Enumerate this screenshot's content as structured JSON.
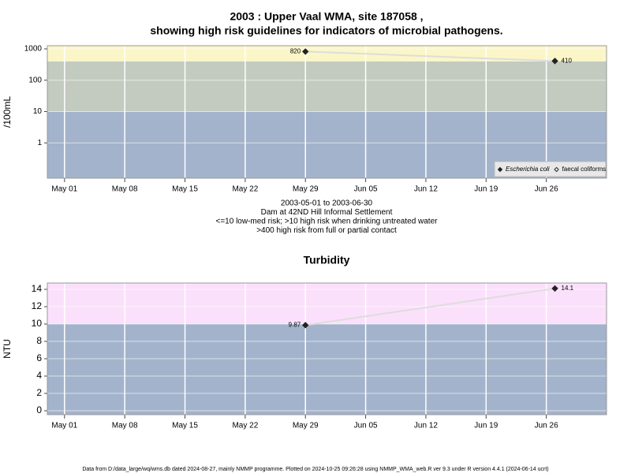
{
  "chart_data": [
    {
      "type": "line",
      "title": [
        "2003 : Upper Vaal WMA, site 187058 ,",
        "showing high risk guidelines for indicators of microbial pathogens."
      ],
      "notes": [
        "2003-05-01 to 2003-06-30",
        "Dam at 42ND Hill Informal Settlement",
        "<=10 low-med risk; >10 high risk when drinking untreated water",
        ">400 high risk from full or partial contact"
      ],
      "y_label": "/100mL",
      "x": [
        "2003-05-29",
        "2003-06-27"
      ],
      "xlim": [
        "2003-04-29",
        "2003-07-03"
      ],
      "xticks": [
        {
          "value": "2003-05-01",
          "label": "May 01"
        },
        {
          "value": "2003-05-08",
          "label": "May 08"
        },
        {
          "value": "2003-05-15",
          "label": "May 15"
        },
        {
          "value": "2003-05-22",
          "label": "May 22"
        },
        {
          "value": "2003-05-29",
          "label": "May 29"
        },
        {
          "value": "2003-06-05",
          "label": "Jun 05"
        },
        {
          "value": "2003-06-12",
          "label": "Jun 12"
        },
        {
          "value": "2003-06-19",
          "label": "Jun 19"
        },
        {
          "value": "2003-06-26",
          "label": "Jun 26"
        }
      ],
      "log_scale": true,
      "ylim": [
        0.075,
        1260
      ],
      "yticks": [
        1,
        10,
        100,
        1000
      ],
      "thresholds": [
        10,
        400
      ],
      "band_colors": [
        "#a3b3cb",
        "#c3cbc0",
        "#fbf6c8"
      ],
      "line_color": "#dddddd",
      "grid": true,
      "legend_position": "lower right",
      "series": [
        {
          "name": "Escherichia coli",
          "color": "#222222",
          "marker": "filled",
          "values": [
            820,
            410
          ]
        },
        {
          "name": "faecal coliforms",
          "color": "#222222",
          "marker": "open",
          "values": [
            null,
            null
          ]
        }
      ]
    },
    {
      "type": "line",
      "title": [
        "Turbidity"
      ],
      "y_label": "NTU",
      "x": [
        "2003-05-29",
        "2003-06-27"
      ],
      "xlim": [
        "2003-04-29",
        "2003-07-03"
      ],
      "xticks": [
        {
          "value": "2003-05-01",
          "label": "May 01"
        },
        {
          "value": "2003-05-08",
          "label": "May 08"
        },
        {
          "value": "2003-05-15",
          "label": "May 15"
        },
        {
          "value": "2003-05-22",
          "label": "May 22"
        },
        {
          "value": "2003-05-29",
          "label": "May 29"
        },
        {
          "value": "2003-06-05",
          "label": "Jun 05"
        },
        {
          "value": "2003-06-12",
          "label": "Jun 12"
        },
        {
          "value": "2003-06-19",
          "label": "Jun 19"
        },
        {
          "value": "2003-06-26",
          "label": "Jun 26"
        }
      ],
      "log_scale": false,
      "ylim": [
        -0.45,
        14.73
      ],
      "yticks": [
        0,
        2,
        4,
        6,
        8,
        10,
        12,
        14
      ],
      "thresholds": [
        10
      ],
      "band_colors": [
        "#a3b3cb",
        "#fbe0fb"
      ],
      "line_color": "#dddddd",
      "grid": true,
      "series": [
        {
          "name": "Turbidity",
          "color": "#222222",
          "marker": "filled",
          "values": [
            9.87,
            14.1
          ]
        }
      ]
    }
  ],
  "footer": "Data from D:/data_large/wq/wms.db dated 2024-08-27, mainly NMMP programme. Plotted on 2024-10-25 09:26:28 using NMMP_WMA_web.R ver 9.3 under R version 4.4.1 (2024-06-14 ucrt)"
}
